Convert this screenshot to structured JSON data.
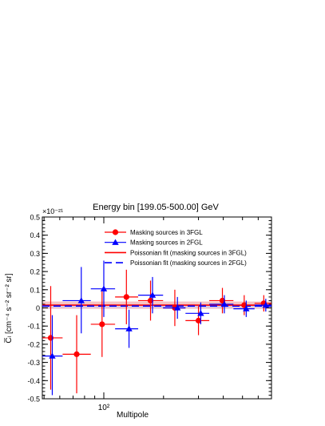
{
  "chart_data": {
    "type": "scatter",
    "title": "Energy bin [199.05-500.00] GeV",
    "xlabel": "Multipole",
    "ylabel": "C̅ₗ [cm⁻⁴ s⁻² sr⁻² sr]",
    "y_exponent_label": "×10⁻²¹",
    "x_scale": "log",
    "xlim": [
      49,
      700
    ],
    "ylim": [
      -0.5,
      0.5
    ],
    "x_ticklabels": [
      "10²"
    ],
    "y_ticks": [
      -0.5,
      -0.4,
      -0.3,
      -0.2,
      -0.1,
      0,
      0.1,
      0.2,
      0.3,
      0.4,
      0.5
    ],
    "y_ticklabels": [
      "-0.5",
      "-0.4",
      "-0.3",
      "-0.2",
      "-0.1",
      "0",
      "0.1",
      "0.2",
      "0.3",
      "0.4",
      "0.5"
    ],
    "legend_position": "top-center",
    "series": [
      {
        "name": "Masking sources in 3FGL",
        "marker": "circle",
        "color": "#ff0000",
        "points": [
          {
            "x": 54,
            "y": -0.165,
            "xlo": 49,
            "xhi": 62,
            "ylo": -0.45,
            "yhi": 0.12
          },
          {
            "x": 73,
            "y": -0.255,
            "xlo": 62,
            "xhi": 86,
            "ylo": -0.47,
            "yhi": -0.04
          },
          {
            "x": 98,
            "y": -0.09,
            "xlo": 86,
            "xhi": 114,
            "ylo": -0.27,
            "yhi": 0.09
          },
          {
            "x": 130,
            "y": 0.06,
            "xlo": 114,
            "xhi": 149,
            "ylo": -0.09,
            "yhi": 0.21
          },
          {
            "x": 172,
            "y": 0.04,
            "xlo": 149,
            "xhi": 199,
            "ylo": -0.07,
            "yhi": 0.15
          },
          {
            "x": 228,
            "y": 0.0,
            "xlo": 199,
            "xhi": 258,
            "ylo": -0.1,
            "yhi": 0.1
          },
          {
            "x": 300,
            "y": -0.07,
            "xlo": 258,
            "xhi": 340,
            "ylo": -0.15,
            "yhi": 0.01
          },
          {
            "x": 396,
            "y": 0.04,
            "xlo": 340,
            "xhi": 450,
            "ylo": -0.03,
            "yhi": 0.11
          },
          {
            "x": 510,
            "y": 0.015,
            "xlo": 450,
            "xhi": 575,
            "ylo": -0.04,
            "yhi": 0.07
          },
          {
            "x": 640,
            "y": 0.025,
            "xlo": 575,
            "xhi": 700,
            "ylo": -0.02,
            "yhi": 0.07
          }
        ]
      },
      {
        "name": "Masking sources in 2FGL",
        "marker": "triangle",
        "color": "#0000ff",
        "points": [
          {
            "x": 55,
            "y": -0.265,
            "xlo": 49,
            "xhi": 62,
            "ylo": -0.48,
            "yhi": -0.04
          },
          {
            "x": 77,
            "y": 0.04,
            "xlo": 62,
            "xhi": 86,
            "ylo": -0.14,
            "yhi": 0.225
          },
          {
            "x": 100,
            "y": 0.105,
            "xlo": 86,
            "xhi": 114,
            "ylo": -0.05,
            "yhi": 0.26
          },
          {
            "x": 134,
            "y": -0.115,
            "xlo": 114,
            "xhi": 149,
            "ylo": -0.22,
            "yhi": -0.01
          },
          {
            "x": 176,
            "y": 0.07,
            "xlo": 149,
            "xhi": 199,
            "ylo": -0.03,
            "yhi": 0.17
          },
          {
            "x": 235,
            "y": 0.0,
            "xlo": 199,
            "xhi": 258,
            "ylo": -0.06,
            "yhi": 0.06
          },
          {
            "x": 308,
            "y": -0.03,
            "xlo": 258,
            "xhi": 340,
            "ylo": -0.09,
            "yhi": 0.03
          },
          {
            "x": 405,
            "y": 0.02,
            "xlo": 340,
            "xhi": 450,
            "ylo": -0.03,
            "yhi": 0.07
          },
          {
            "x": 522,
            "y": -0.005,
            "xlo": 450,
            "xhi": 575,
            "ylo": -0.05,
            "yhi": 0.04
          },
          {
            "x": 655,
            "y": 0.015,
            "xlo": 575,
            "xhi": 700,
            "ylo": -0.02,
            "yhi": 0.05
          }
        ]
      },
      {
        "name": "Poissonian fit (masking sources in 3FGL)",
        "kind": "hline",
        "color": "#ff0000",
        "dash": "solid",
        "y": 0.015,
        "band": [
          -0.005,
          0.035
        ],
        "band_color": "#f4aaaa"
      },
      {
        "name": "Poissonian fit (masking sources in 2FGL)",
        "kind": "hline",
        "color": "#0000ff",
        "dash": "dashed",
        "y": 0.01,
        "band": [
          0.0,
          0.02
        ],
        "band_color": "#c8c8f4"
      }
    ]
  }
}
